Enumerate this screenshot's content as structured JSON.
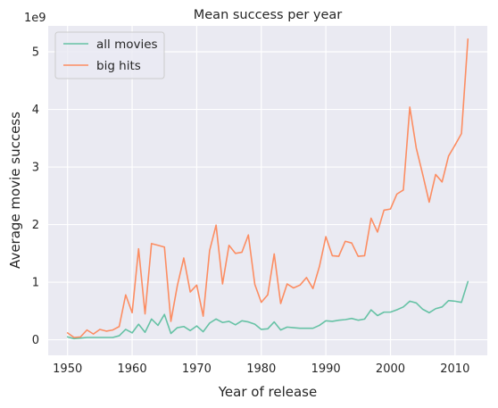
{
  "chart_data": {
    "type": "line",
    "title": "Mean success per year",
    "xlabel": "Year of release",
    "ylabel": "Average movie success",
    "y_multiplier": "1e9",
    "xlim": [
      1947,
      2015
    ],
    "ylim": [
      -0.27,
      5.45
    ],
    "x_ticks": [
      1950,
      1960,
      1970,
      1980,
      1990,
      2000,
      2010
    ],
    "y_ticks": [
      0,
      1,
      2,
      3,
      4,
      5
    ],
    "grid": true,
    "legend_position": "top-left",
    "x": [
      1950,
      1951,
      1952,
      1953,
      1954,
      1955,
      1956,
      1957,
      1958,
      1959,
      1960,
      1961,
      1962,
      1963,
      1964,
      1965,
      1966,
      1967,
      1968,
      1969,
      1970,
      1971,
      1972,
      1973,
      1974,
      1975,
      1976,
      1977,
      1978,
      1979,
      1980,
      1981,
      1982,
      1983,
      1984,
      1985,
      1986,
      1987,
      1988,
      1989,
      1990,
      1991,
      1992,
      1993,
      1994,
      1995,
      1996,
      1997,
      1998,
      1999,
      2000,
      2001,
      2002,
      2003,
      2004,
      2005,
      2006,
      2007,
      2008,
      2009,
      2010,
      2011,
      2012
    ],
    "series": [
      {
        "name": "all movies",
        "color": "#66c2a5",
        "values": [
          0.05,
          0.02,
          0.03,
          0.04,
          0.04,
          0.04,
          0.04,
          0.04,
          0.07,
          0.18,
          0.12,
          0.27,
          0.13,
          0.36,
          0.25,
          0.44,
          0.11,
          0.21,
          0.23,
          0.16,
          0.24,
          0.14,
          0.29,
          0.36,
          0.3,
          0.32,
          0.26,
          0.33,
          0.31,
          0.27,
          0.18,
          0.19,
          0.31,
          0.17,
          0.22,
          0.21,
          0.2,
          0.2,
          0.2,
          0.25,
          0.33,
          0.32,
          0.34,
          0.35,
          0.37,
          0.34,
          0.36,
          0.52,
          0.42,
          0.48,
          0.48,
          0.52,
          0.57,
          0.67,
          0.64,
          0.53,
          0.47,
          0.54,
          0.57,
          0.68,
          0.67,
          0.65,
          1.01
        ]
      },
      {
        "name": "big hits",
        "color": "#fc8d62",
        "values": [
          0.12,
          0.04,
          0.05,
          0.17,
          0.1,
          0.18,
          0.15,
          0.17,
          0.23,
          0.78,
          0.47,
          1.58,
          0.45,
          1.67,
          1.64,
          1.61,
          0.32,
          0.94,
          1.42,
          0.83,
          0.95,
          0.41,
          1.55,
          1.99,
          0.97,
          1.64,
          1.5,
          1.52,
          1.82,
          0.96,
          0.65,
          0.78,
          1.49,
          0.63,
          0.97,
          0.9,
          0.95,
          1.08,
          0.89,
          1.27,
          1.79,
          1.46,
          1.45,
          1.71,
          1.68,
          1.45,
          1.46,
          2.11,
          1.87,
          2.25,
          2.27,
          2.53,
          2.6,
          4.04,
          3.33,
          2.87,
          2.39,
          2.87,
          2.74,
          3.19,
          3.38,
          3.58,
          5.22
        ]
      }
    ]
  }
}
